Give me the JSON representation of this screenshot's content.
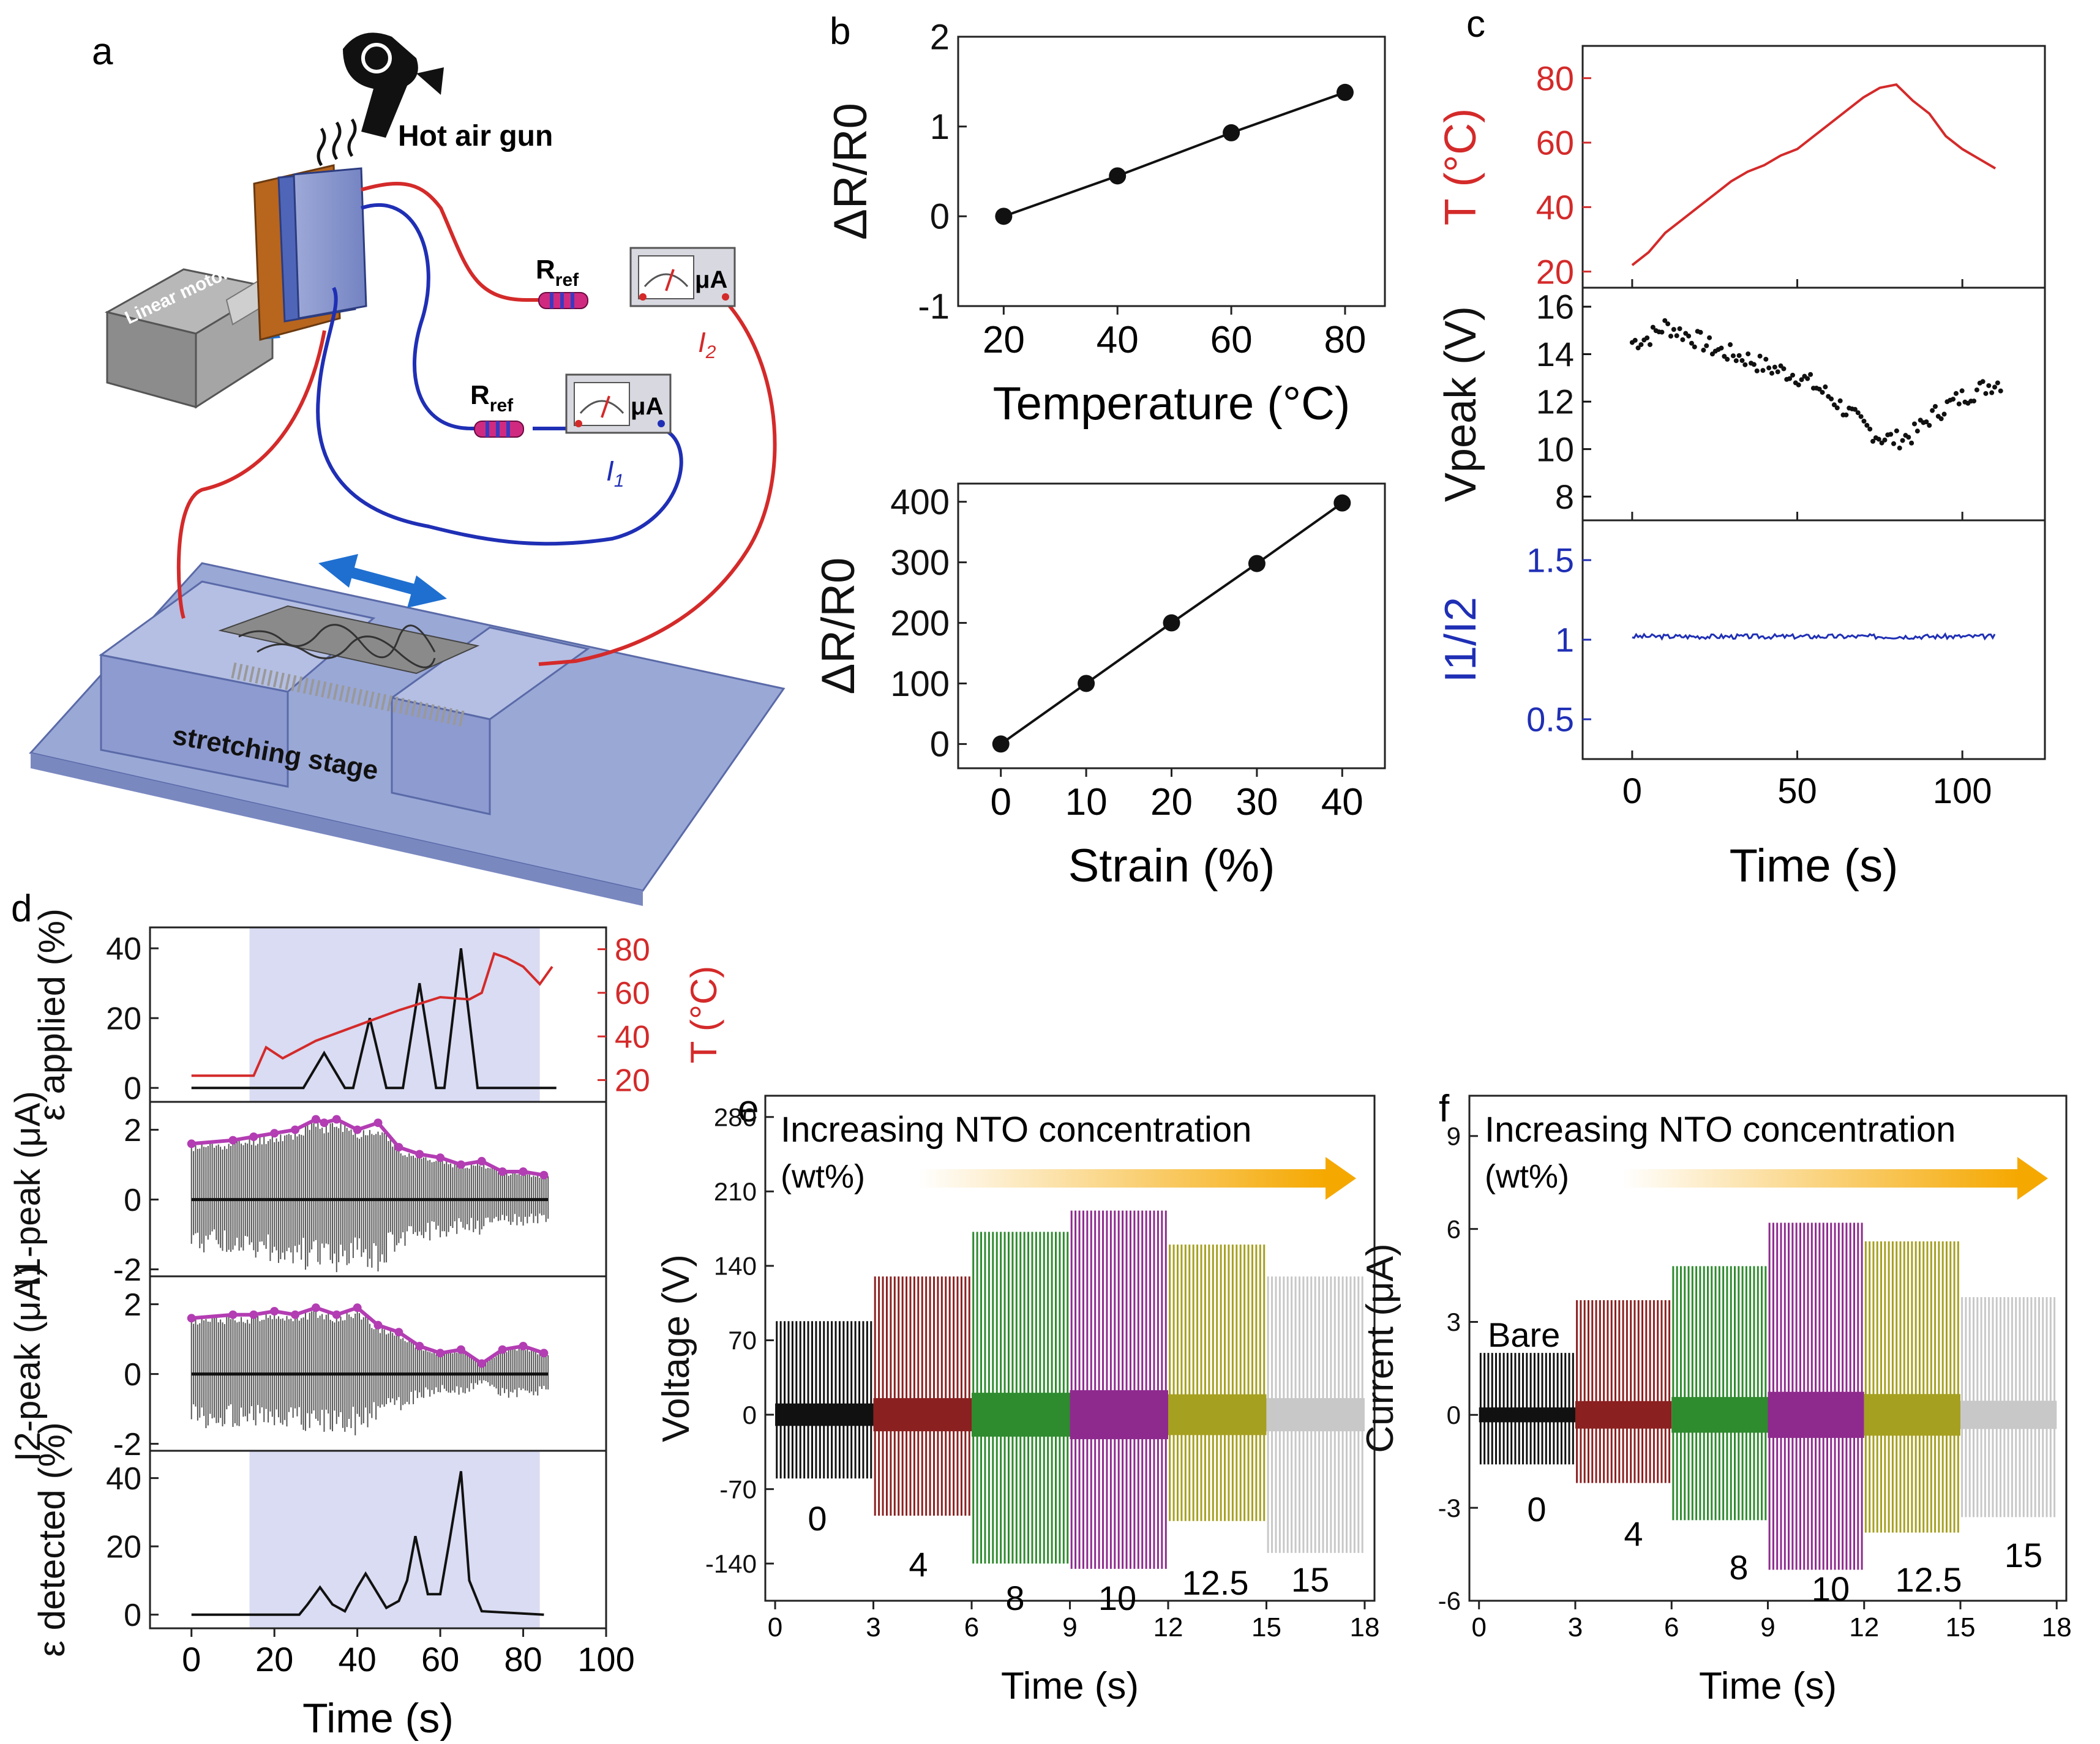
{
  "panel_letters": {
    "a": "a",
    "b": "b",
    "c": "c",
    "d": "d",
    "e": "e",
    "f": "f"
  },
  "schematic": {
    "hot_air_gun": "Hot air gun",
    "linear_motor": "Linear motor",
    "rref_main": "R",
    "rref_sub": "ref",
    "meter_unit": "μA",
    "i1_label": "I",
    "i1_sub": "1",
    "i2_label": "I",
    "i2_sub": "2",
    "stage_label": "stretching stage"
  },
  "colors": {
    "temperature": "#d42a2a",
    "ratio": "#1f2fb5",
    "wire_red": "#d42a2a",
    "wire_blue": "#1f2fb5",
    "purple_dots": "#b33db3",
    "shade": "#d9dcf2",
    "arrow": "#f5a800",
    "conc_colors": [
      "#111111",
      "#8b2020",
      "#2e8b2e",
      "#8e2a8e",
      "#a6a020",
      "#c8c8c8"
    ]
  },
  "chart_data": [
    {
      "panel": "b-top",
      "type": "line",
      "x": [
        20,
        40,
        60,
        80
      ],
      "y": [
        0,
        0.45,
        0.93,
        1.38
      ],
      "xlabel": "Temperature (°C)",
      "ylabel": "ΔR/R0",
      "xlim": [
        12,
        87
      ],
      "ylim": [
        -1,
        2
      ],
      "xticks": [
        20,
        40,
        60,
        80
      ],
      "yticks": [
        -1,
        0,
        1,
        2
      ]
    },
    {
      "panel": "b-bottom",
      "type": "line",
      "x": [
        0,
        10,
        20,
        30,
        40
      ],
      "y": [
        0,
        100,
        200,
        298,
        398
      ],
      "xlabel": "Strain (%)",
      "ylabel": "ΔR/R0",
      "xlim": [
        -5,
        45
      ],
      "ylim": [
        -40,
        430
      ],
      "xticks": [
        0,
        10,
        20,
        30,
        40
      ],
      "yticks": [
        0,
        100,
        200,
        300,
        400
      ]
    },
    {
      "panel": "c",
      "type": "line",
      "xlabel": "Time (s)",
      "xlim": [
        -15,
        125
      ],
      "xticks": [
        0,
        50,
        100
      ],
      "series": [
        {
          "name": "T (°C)",
          "ylim": [
            15,
            90
          ],
          "yticks": [
            20,
            40,
            60,
            80
          ],
          "x": [
            0,
            5,
            10,
            15,
            20,
            25,
            30,
            35,
            40,
            45,
            50,
            55,
            60,
            65,
            70,
            75,
            80,
            85,
            90,
            95,
            100,
            105,
            110
          ],
          "y": [
            22,
            26,
            32,
            36,
            40,
            44,
            48,
            51,
            53,
            56,
            58,
            62,
            66,
            70,
            74,
            77,
            78,
            73,
            69,
            62,
            58,
            55,
            52
          ]
        },
        {
          "name": "Vpeak (V)",
          "ylim": [
            7,
            16.8
          ],
          "yticks": [
            8,
            10,
            12,
            14,
            16
          ],
          "x": [
            0,
            5,
            10,
            15,
            20,
            25,
            30,
            35,
            40,
            45,
            50,
            55,
            60,
            65,
            70,
            75,
            80,
            85,
            90,
            95,
            100,
            105,
            110
          ],
          "y": [
            14.5,
            14.7,
            15.2,
            14.9,
            14.6,
            14.2,
            14.0,
            13.8,
            13.5,
            13.3,
            13.1,
            12.7,
            12.2,
            11.6,
            11.0,
            10.5,
            10.4,
            10.6,
            11.3,
            11.8,
            12.2,
            12.5,
            12.8
          ]
        },
        {
          "name": "I1/I2",
          "ylim": [
            0.25,
            1.75
          ],
          "yticks": [
            0.5,
            1,
            1.5
          ],
          "x": [
            0,
            110
          ],
          "y": [
            1.02,
            1.02
          ]
        }
      ]
    },
    {
      "panel": "d",
      "type": "line",
      "xlabel": "Time (s)",
      "xlim": [
        -10,
        100
      ],
      "xticks": [
        0,
        20,
        40,
        60,
        80,
        100
      ],
      "shaded_x": [
        14,
        84
      ],
      "series": [
        {
          "name": "ε applied (%)",
          "ylim": [
            -4,
            46
          ],
          "yticks": [
            0,
            20,
            40
          ],
          "x": [
            0,
            27,
            32,
            37,
            39,
            43,
            47,
            51,
            55,
            59,
            61,
            65,
            69,
            72,
            88
          ],
          "y": [
            0,
            0,
            10,
            0,
            0,
            20,
            0,
            0,
            30,
            0,
            0,
            40,
            0,
            0,
            0
          ]
        },
        {
          "name": "T (°C)",
          "ylim": [
            10,
            90
          ],
          "yticks": [
            20,
            40,
            60,
            80
          ],
          "x": [
            0,
            15,
            18,
            22,
            30,
            40,
            50,
            60,
            67,
            70,
            73,
            76,
            80,
            84,
            87
          ],
          "y": [
            22,
            22,
            35,
            30,
            38,
            45,
            52,
            58,
            57,
            60,
            78,
            76,
            72,
            64,
            72
          ]
        },
        {
          "name": "I1-peak (μA)",
          "ylim": [
            -2.2,
            2.8
          ],
          "yticks": [
            -2,
            0,
            2
          ],
          "x": [
            0,
            10,
            15,
            20,
            25,
            30,
            32,
            35,
            40,
            45,
            50,
            55,
            60,
            65,
            70,
            75,
            80,
            85
          ],
          "y": [
            1.6,
            1.7,
            1.8,
            1.9,
            2.0,
            2.3,
            2.2,
            2.3,
            2.0,
            2.2,
            1.5,
            1.3,
            1.2,
            1.0,
            1.1,
            0.8,
            0.8,
            0.7
          ]
        },
        {
          "name": "I2-peak (μA)",
          "ylim": [
            -2.2,
            2.8
          ],
          "yticks": [
            -2,
            0,
            2
          ],
          "x": [
            0,
            10,
            15,
            20,
            25,
            30,
            35,
            40,
            45,
            50,
            55,
            60,
            65,
            70,
            75,
            80,
            85
          ],
          "y": [
            1.6,
            1.7,
            1.7,
            1.8,
            1.7,
            1.9,
            1.7,
            1.9,
            1.4,
            1.2,
            0.8,
            0.6,
            0.7,
            0.3,
            0.7,
            0.8,
            0.6
          ]
        },
        {
          "name": "ε detected (%)",
          "ylim": [
            -4,
            48
          ],
          "yticks": [
            0,
            20,
            40
          ],
          "x": [
            0,
            26,
            28,
            31,
            34,
            37,
            40,
            42,
            44,
            47,
            50,
            52,
            54,
            57,
            60,
            62,
            65,
            67,
            70,
            85
          ],
          "y": [
            0,
            0,
            3,
            8,
            3,
            1,
            8,
            12,
            8,
            2,
            4,
            10,
            23,
            6,
            6,
            20,
            42,
            10,
            1,
            0
          ]
        }
      ]
    },
    {
      "panel": "e",
      "type": "line",
      "title": "Increasing NTO concentration",
      "subtitle": "(wt%)",
      "xlabel": "Time (s)",
      "ylabel": "Voltage (V)",
      "xlim": [
        -0.3,
        18.3
      ],
      "ylim": [
        -175,
        300
      ],
      "xticks": [
        0,
        3,
        6,
        9,
        12,
        15,
        18
      ],
      "yticks": [
        -140,
        -70,
        0,
        70,
        140,
        210,
        280
      ],
      "series": [
        {
          "name": "0",
          "x_range": [
            0,
            3
          ],
          "upper": 88,
          "lower": -60
        },
        {
          "name": "4",
          "x_range": [
            3,
            6
          ],
          "upper": 130,
          "lower": -95
        },
        {
          "name": "8",
          "x_range": [
            6,
            9
          ],
          "upper": 172,
          "lower": -140
        },
        {
          "name": "10",
          "x_range": [
            9,
            12
          ],
          "upper": 192,
          "lower": -145
        },
        {
          "name": "12.5",
          "x_range": [
            12,
            15
          ],
          "upper": 160,
          "lower": -100
        },
        {
          "name": "15",
          "x_range": [
            15,
            18
          ],
          "upper": 130,
          "lower": -130
        }
      ]
    },
    {
      "panel": "f",
      "type": "line",
      "title": "Increasing NTO concentration",
      "subtitle": "(wt%)",
      "annotation": "Bare",
      "xlabel": "Time (s)",
      "ylabel": "Current (μA)",
      "xlim": [
        -0.3,
        18.3
      ],
      "ylim": [
        -6,
        10.3
      ],
      "xticks": [
        0,
        3,
        6,
        9,
        12,
        15,
        18
      ],
      "yticks": [
        -6,
        -3,
        0,
        3,
        6,
        9
      ],
      "series": [
        {
          "name": "0",
          "x_range": [
            0,
            3
          ],
          "upper": 2.0,
          "lower": -1.6
        },
        {
          "name": "4",
          "x_range": [
            3,
            6
          ],
          "upper": 3.7,
          "lower": -2.2
        },
        {
          "name": "8",
          "x_range": [
            6,
            9
          ],
          "upper": 4.8,
          "lower": -3.4
        },
        {
          "name": "10",
          "x_range": [
            9,
            12
          ],
          "upper": 6.2,
          "lower": -5.0
        },
        {
          "name": "12.5",
          "x_range": [
            12,
            15
          ],
          "upper": 5.6,
          "lower": -3.8
        },
        {
          "name": "15",
          "x_range": [
            15,
            18
          ],
          "upper": 3.8,
          "lower": -3.3
        }
      ]
    }
  ]
}
